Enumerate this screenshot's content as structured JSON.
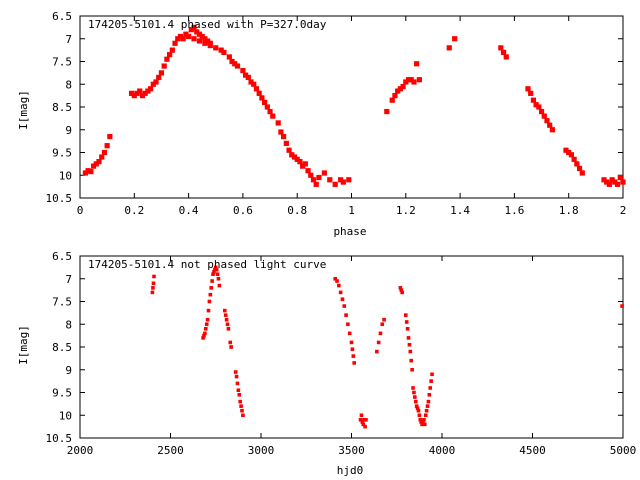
{
  "chart_data": [
    {
      "type": "scatter",
      "title": "174205-5101.4 phased with P=327.0day",
      "xlabel": "phase",
      "ylabel": "I[mag]",
      "xlim": [
        0,
        2
      ],
      "ylim": [
        10.5,
        6.5
      ],
      "y_reversed": true,
      "grid": false,
      "x_ticks": [
        "0",
        "0.2",
        "0.4",
        "0.6",
        "0.8",
        "1",
        "1.2",
        "1.4",
        "1.6",
        "1.8",
        "2"
      ],
      "y_ticks": [
        "6.5",
        "7",
        "7.5",
        "8",
        "8.5",
        "9",
        "9.5",
        "10",
        "10.5"
      ],
      "color": "#ff0000",
      "points": [
        [
          0.02,
          9.95
        ],
        [
          0.03,
          9.9
        ],
        [
          0.04,
          9.92
        ],
        [
          0.05,
          9.8
        ],
        [
          0.06,
          9.75
        ],
        [
          0.07,
          9.7
        ],
        [
          0.08,
          9.6
        ],
        [
          0.09,
          9.5
        ],
        [
          0.1,
          9.35
        ],
        [
          0.11,
          9.15
        ],
        [
          0.19,
          8.2
        ],
        [
          0.2,
          8.25
        ],
        [
          0.21,
          8.2
        ],
        [
          0.22,
          8.15
        ],
        [
          0.23,
          8.25
        ],
        [
          0.24,
          8.2
        ],
        [
          0.25,
          8.15
        ],
        [
          0.26,
          8.1
        ],
        [
          0.27,
          8.0
        ],
        [
          0.28,
          7.95
        ],
        [
          0.29,
          7.85
        ],
        [
          0.3,
          7.75
        ],
        [
          0.31,
          7.6
        ],
        [
          0.32,
          7.45
        ],
        [
          0.33,
          7.35
        ],
        [
          0.34,
          7.25
        ],
        [
          0.35,
          7.1
        ],
        [
          0.36,
          7.0
        ],
        [
          0.37,
          6.95
        ],
        [
          0.38,
          7.0
        ],
        [
          0.39,
          6.9
        ],
        [
          0.4,
          6.95
        ],
        [
          0.41,
          6.8
        ],
        [
          0.42,
          6.75
        ],
        [
          0.43,
          6.85
        ],
        [
          0.44,
          6.9
        ],
        [
          0.45,
          6.95
        ],
        [
          0.46,
          7.0
        ],
        [
          0.47,
          7.05
        ],
        [
          0.48,
          7.15
        ],
        [
          0.42,
          7.0
        ],
        [
          0.44,
          7.05
        ],
        [
          0.46,
          7.1
        ],
        [
          0.48,
          7.1
        ],
        [
          0.5,
          7.2
        ],
        [
          0.52,
          7.25
        ],
        [
          0.53,
          7.3
        ],
        [
          0.55,
          7.4
        ],
        [
          0.56,
          7.5
        ],
        [
          0.57,
          7.55
        ],
        [
          0.58,
          7.6
        ],
        [
          0.6,
          7.7
        ],
        [
          0.61,
          7.8
        ],
        [
          0.62,
          7.85
        ],
        [
          0.63,
          7.95
        ],
        [
          0.64,
          8.0
        ],
        [
          0.65,
          8.1
        ],
        [
          0.66,
          8.2
        ],
        [
          0.67,
          8.3
        ],
        [
          0.68,
          8.4
        ],
        [
          0.69,
          8.5
        ],
        [
          0.7,
          8.6
        ],
        [
          0.71,
          8.7
        ],
        [
          0.73,
          8.85
        ],
        [
          0.74,
          9.05
        ],
        [
          0.75,
          9.15
        ],
        [
          0.76,
          9.3
        ],
        [
          0.77,
          9.45
        ],
        [
          0.78,
          9.55
        ],
        [
          0.79,
          9.6
        ],
        [
          0.8,
          9.65
        ],
        [
          0.81,
          9.7
        ],
        [
          0.82,
          9.8
        ],
        [
          0.83,
          9.75
        ],
        [
          0.84,
          9.9
        ],
        [
          0.85,
          10.0
        ],
        [
          0.86,
          10.1
        ],
        [
          0.87,
          10.2
        ],
        [
          0.88,
          10.05
        ],
        [
          0.9,
          9.95
        ],
        [
          0.92,
          10.1
        ],
        [
          0.94,
          10.2
        ],
        [
          0.96,
          10.1
        ],
        [
          0.97,
          10.15
        ],
        [
          0.99,
          10.1
        ],
        [
          1.13,
          8.6
        ],
        [
          1.15,
          8.35
        ],
        [
          1.16,
          8.25
        ],
        [
          1.17,
          8.15
        ],
        [
          1.18,
          8.1
        ],
        [
          1.19,
          8.05
        ],
        [
          1.2,
          7.95
        ],
        [
          1.21,
          7.9
        ],
        [
          1.22,
          7.9
        ],
        [
          1.23,
          7.95
        ],
        [
          1.24,
          7.55
        ],
        [
          1.25,
          7.9
        ],
        [
          1.36,
          7.2
        ],
        [
          1.38,
          7.0
        ],
        [
          1.55,
          7.2
        ],
        [
          1.56,
          7.3
        ],
        [
          1.57,
          7.4
        ],
        [
          1.65,
          8.1
        ],
        [
          1.66,
          8.2
        ],
        [
          1.67,
          8.35
        ],
        [
          1.68,
          8.45
        ],
        [
          1.69,
          8.5
        ],
        [
          1.7,
          8.6
        ],
        [
          1.71,
          8.7
        ],
        [
          1.72,
          8.8
        ],
        [
          1.73,
          8.9
        ],
        [
          1.74,
          9.0
        ],
        [
          1.79,
          9.45
        ],
        [
          1.8,
          9.5
        ],
        [
          1.81,
          9.55
        ],
        [
          1.82,
          9.65
        ],
        [
          1.83,
          9.75
        ],
        [
          1.84,
          9.85
        ],
        [
          1.85,
          9.95
        ],
        [
          1.93,
          10.1
        ],
        [
          1.94,
          10.15
        ],
        [
          1.95,
          10.2
        ],
        [
          1.96,
          10.1
        ],
        [
          1.97,
          10.15
        ],
        [
          1.98,
          10.2
        ],
        [
          1.99,
          10.05
        ],
        [
          2.0,
          10.15
        ]
      ]
    },
    {
      "type": "scatter",
      "title": "174205-5101.4 not phased light curve",
      "xlabel": "hjd0",
      "ylabel": "I[mag]",
      "xlim": [
        2000,
        5000
      ],
      "ylim": [
        10.5,
        6.5
      ],
      "y_reversed": true,
      "grid": false,
      "x_ticks": [
        "2000",
        "2500",
        "3000",
        "3500",
        "4000",
        "4500",
        "5000"
      ],
      "y_ticks": [
        "6.5",
        "7",
        "7.5",
        "8",
        "8.5",
        "9",
        "9.5",
        "10",
        "10.5"
      ],
      "color": "#ff0000",
      "points": [
        [
          2400,
          7.3
        ],
        [
          2403,
          7.2
        ],
        [
          2406,
          7.1
        ],
        [
          2409,
          6.95
        ],
        [
          2680,
          8.3
        ],
        [
          2685,
          8.25
        ],
        [
          2690,
          8.2
        ],
        [
          2695,
          8.1
        ],
        [
          2700,
          8.0
        ],
        [
          2705,
          7.9
        ],
        [
          2710,
          7.7
        ],
        [
          2715,
          7.5
        ],
        [
          2720,
          7.35
        ],
        [
          2725,
          7.2
        ],
        [
          2730,
          7.05
        ],
        [
          2735,
          6.9
        ],
        [
          2740,
          6.85
        ],
        [
          2745,
          6.8
        ],
        [
          2750,
          6.75
        ],
        [
          2755,
          6.8
        ],
        [
          2760,
          6.9
        ],
        [
          2765,
          7.0
        ],
        [
          2770,
          7.15
        ],
        [
          2800,
          7.7
        ],
        [
          2805,
          7.8
        ],
        [
          2810,
          7.9
        ],
        [
          2815,
          8.0
        ],
        [
          2820,
          8.1
        ],
        [
          2830,
          8.4
        ],
        [
          2835,
          8.5
        ],
        [
          2860,
          9.05
        ],
        [
          2865,
          9.15
        ],
        [
          2870,
          9.3
        ],
        [
          2875,
          9.45
        ],
        [
          2880,
          9.55
        ],
        [
          2885,
          9.7
        ],
        [
          2890,
          9.8
        ],
        [
          2895,
          9.9
        ],
        [
          2900,
          10.0
        ],
        [
          3410,
          7.0
        ],
        [
          3420,
          7.05
        ],
        [
          3430,
          7.15
        ],
        [
          3440,
          7.3
        ],
        [
          3450,
          7.45
        ],
        [
          3460,
          7.6
        ],
        [
          3470,
          7.8
        ],
        [
          3480,
          8.0
        ],
        [
          3490,
          8.2
        ],
        [
          3500,
          8.4
        ],
        [
          3505,
          8.55
        ],
        [
          3510,
          8.7
        ],
        [
          3515,
          8.85
        ],
        [
          3550,
          10.1
        ],
        [
          3555,
          10.0
        ],
        [
          3560,
          10.15
        ],
        [
          3565,
          10.2
        ],
        [
          3570,
          10.1
        ],
        [
          3575,
          10.25
        ],
        [
          3580,
          10.1
        ],
        [
          3640,
          8.6
        ],
        [
          3650,
          8.4
        ],
        [
          3660,
          8.2
        ],
        [
          3670,
          8.0
        ],
        [
          3680,
          7.9
        ],
        [
          3770,
          7.2
        ],
        [
          3775,
          7.25
        ],
        [
          3780,
          7.3
        ],
        [
          3800,
          7.8
        ],
        [
          3805,
          7.95
        ],
        [
          3810,
          8.1
        ],
        [
          3815,
          8.3
        ],
        [
          3820,
          8.45
        ],
        [
          3825,
          8.6
        ],
        [
          3830,
          8.8
        ],
        [
          3835,
          9.0
        ],
        [
          3840,
          9.4
        ],
        [
          3845,
          9.5
        ],
        [
          3850,
          9.6
        ],
        [
          3855,
          9.7
        ],
        [
          3860,
          9.8
        ],
        [
          3865,
          9.85
        ],
        [
          3870,
          9.9
        ],
        [
          3875,
          10.0
        ],
        [
          3880,
          10.1
        ],
        [
          3885,
          10.15
        ],
        [
          3890,
          10.2
        ],
        [
          3895,
          10.15
        ],
        [
          3900,
          10.1
        ],
        [
          3905,
          10.2
        ],
        [
          3910,
          10.0
        ],
        [
          3915,
          9.9
        ],
        [
          3920,
          9.8
        ],
        [
          3925,
          9.7
        ],
        [
          3930,
          9.55
        ],
        [
          3935,
          9.4
        ],
        [
          3940,
          9.25
        ],
        [
          3945,
          9.1
        ],
        [
          4995,
          7.6
        ]
      ]
    }
  ]
}
